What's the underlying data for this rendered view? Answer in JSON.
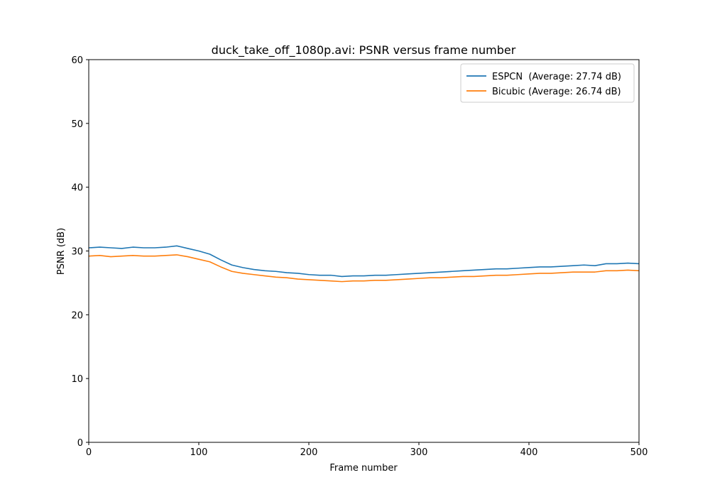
{
  "chart_data": {
    "type": "line",
    "title": "duck_take_off_1080p.avi: PSNR versus frame number",
    "xlabel": "Frame number",
    "ylabel": "PSNR (dB)",
    "xlim": [
      0,
      500
    ],
    "ylim": [
      0,
      60
    ],
    "xticks": [
      "0",
      "100",
      "200",
      "300",
      "400",
      "500"
    ],
    "yticks": [
      "0",
      "10",
      "20",
      "30",
      "40",
      "50",
      "60"
    ],
    "grid": false,
    "legend_position": "top-right",
    "series": [
      {
        "name": "ESPCN  (Average: 27.74 dB)",
        "color": "#1f77b4",
        "x": [
          0,
          10,
          20,
          30,
          40,
          50,
          60,
          70,
          80,
          90,
          100,
          110,
          120,
          130,
          140,
          150,
          160,
          170,
          180,
          190,
          200,
          210,
          220,
          230,
          240,
          250,
          260,
          270,
          280,
          290,
          300,
          310,
          320,
          330,
          340,
          350,
          360,
          370,
          380,
          390,
          400,
          410,
          420,
          430,
          440,
          450,
          460,
          470,
          480,
          490,
          500
        ],
        "values": [
          30.5,
          30.6,
          30.5,
          30.4,
          30.6,
          30.5,
          30.5,
          30.6,
          30.8,
          30.4,
          30.0,
          29.5,
          28.6,
          27.8,
          27.4,
          27.1,
          26.9,
          26.8,
          26.6,
          26.5,
          26.3,
          26.2,
          26.2,
          26.0,
          26.1,
          26.1,
          26.2,
          26.2,
          26.3,
          26.4,
          26.5,
          26.6,
          26.7,
          26.8,
          26.9,
          27.0,
          27.1,
          27.2,
          27.2,
          27.3,
          27.4,
          27.5,
          27.5,
          27.6,
          27.7,
          27.8,
          27.7,
          28.0,
          28.0,
          28.1,
          28.0
        ]
      },
      {
        "name": "Bicubic (Average: 26.74 dB)",
        "color": "#ff7f0e",
        "x": [
          0,
          10,
          20,
          30,
          40,
          50,
          60,
          70,
          80,
          90,
          100,
          110,
          120,
          130,
          140,
          150,
          160,
          170,
          180,
          190,
          200,
          210,
          220,
          230,
          240,
          250,
          260,
          270,
          280,
          290,
          300,
          310,
          320,
          330,
          340,
          350,
          360,
          370,
          380,
          390,
          400,
          410,
          420,
          430,
          440,
          450,
          460,
          470,
          480,
          490,
          500
        ],
        "values": [
          29.2,
          29.3,
          29.1,
          29.2,
          29.3,
          29.2,
          29.2,
          29.3,
          29.4,
          29.1,
          28.7,
          28.3,
          27.5,
          26.8,
          26.5,
          26.3,
          26.1,
          25.9,
          25.8,
          25.6,
          25.5,
          25.4,
          25.3,
          25.2,
          25.3,
          25.3,
          25.4,
          25.4,
          25.5,
          25.6,
          25.7,
          25.8,
          25.8,
          25.9,
          26.0,
          26.0,
          26.1,
          26.2,
          26.2,
          26.3,
          26.4,
          26.5,
          26.5,
          26.6,
          26.7,
          26.7,
          26.7,
          26.9,
          26.9,
          27.0,
          26.9
        ]
      }
    ]
  }
}
